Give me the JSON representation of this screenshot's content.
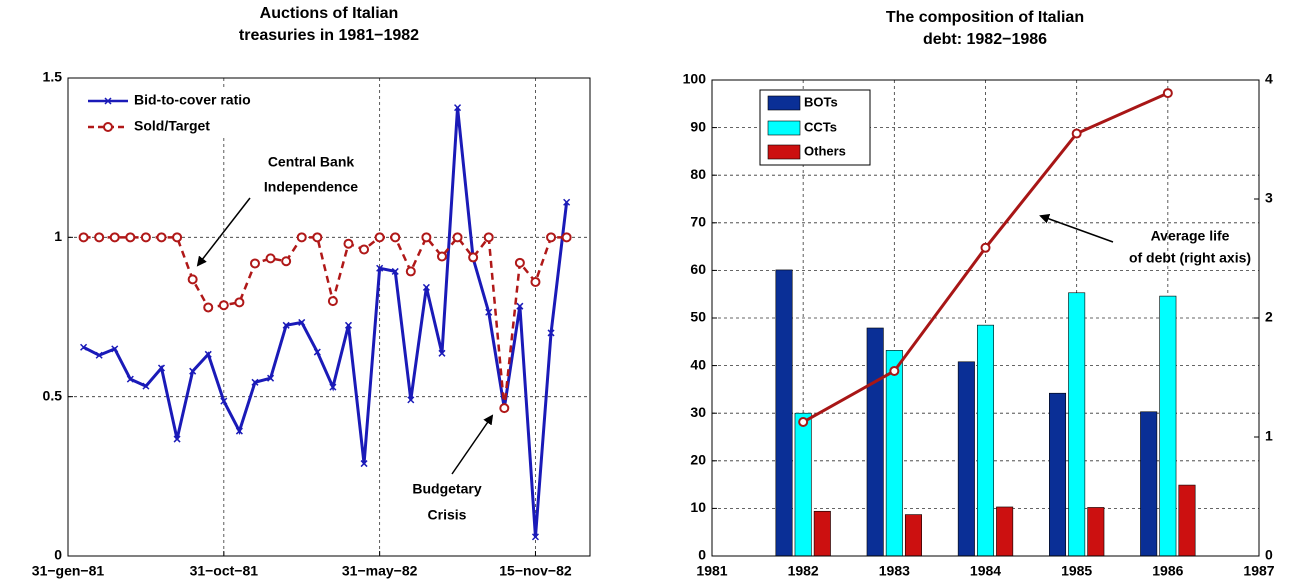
{
  "chart_data": [
    {
      "type": "line",
      "title": [
        "Auctions of Italian",
        "treasuries in 1981−1982"
      ],
      "x": [
        1,
        2,
        3,
        4,
        5,
        6,
        7,
        8,
        9,
        10,
        11,
        12,
        13,
        14,
        15,
        16,
        17,
        18,
        19,
        20,
        21,
        22,
        23,
        24,
        25,
        26,
        27,
        28,
        29,
        30,
        31,
        32
      ],
      "xlim": [
        0,
        33.5
      ],
      "xticks": [
        {
          "value": 0,
          "label": "31−gen−81"
        },
        {
          "value": 10,
          "label": "31−oct−81"
        },
        {
          "value": 20,
          "label": "31−may−82"
        },
        {
          "value": 30,
          "label": "15−nov−82"
        }
      ],
      "ylim": [
        0,
        1.5
      ],
      "yticks": [
        0,
        0.5,
        1,
        1.5
      ],
      "grid": true,
      "legend": "upper left",
      "series": [
        {
          "name": "Bid-to-cover ratio",
          "color": "#1a1ab8",
          "marker": "x",
          "dashed": false,
          "values": [
            0.655,
            0.63,
            0.65,
            0.555,
            0.533,
            0.59,
            0.367,
            0.58,
            0.633,
            0.486,
            0.392,
            0.545,
            0.558,
            0.724,
            0.733,
            0.64,
            0.53,
            0.724,
            0.29,
            0.903,
            0.893,
            0.49,
            0.843,
            0.636,
            1.407,
            0.934,
            0.765,
            0.464,
            0.784,
            0.06,
            0.7,
            1.11
          ]
        },
        {
          "name": "Sold/Target",
          "color": "#b01818",
          "marker": "o",
          "dashed": true,
          "values": [
            1,
            1,
            1,
            1,
            1,
            1,
            1,
            0.868,
            0.78,
            0.787,
            0.796,
            0.918,
            0.934,
            0.925,
            1,
            1,
            0.8,
            0.98,
            0.962,
            1,
            1,
            0.893,
            1,
            0.94,
            1,
            0.937,
            1,
            0.464,
            0.92,
            0.86,
            1,
            1
          ]
        }
      ],
      "annotations": [
        {
          "text": [
            "Central Bank",
            "Independence"
          ]
        },
        {
          "text": [
            "Budgetary",
            "Crisis"
          ]
        }
      ]
    },
    {
      "type": "bar",
      "title": [
        "The composition of Italian",
        "debt: 1982−1986"
      ],
      "x": [
        1982,
        1983,
        1984,
        1985,
        1986
      ],
      "xlim": [
        1981,
        1987
      ],
      "xticks": [
        1981,
        1982,
        1983,
        1984,
        1985,
        1986,
        1987
      ],
      "ylim": [
        0,
        100
      ],
      "yticks": [
        0,
        10,
        20,
        30,
        40,
        50,
        60,
        70,
        80,
        90,
        100
      ],
      "y2lim": [
        0,
        4
      ],
      "y2ticks": [
        0,
        1,
        2,
        3,
        4
      ],
      "grid": true,
      "legend": "upper left",
      "series": [
        {
          "name": "BOTs",
          "color": "#0a2f96",
          "values": [
            60.1,
            47.9,
            40.8,
            34.2,
            30.3
          ]
        },
        {
          "name": "CCTs",
          "color": "#00ffff",
          "values": [
            30,
            43.2,
            48.5,
            55.3,
            54.6
          ]
        },
        {
          "name": "Others",
          "color": "#cc1010",
          "values": [
            9.4,
            8.7,
            10.3,
            10.2,
            14.9
          ]
        },
        {
          "type": "line",
          "axis": "y2",
          "color": "#a81616",
          "marker": "o",
          "values": [
            1.126,
            1.555,
            2.59,
            3.55,
            3.89
          ]
        }
      ],
      "annotations": [
        {
          "text": [
            "Average life",
            "of debt (right axis)"
          ]
        }
      ]
    }
  ]
}
